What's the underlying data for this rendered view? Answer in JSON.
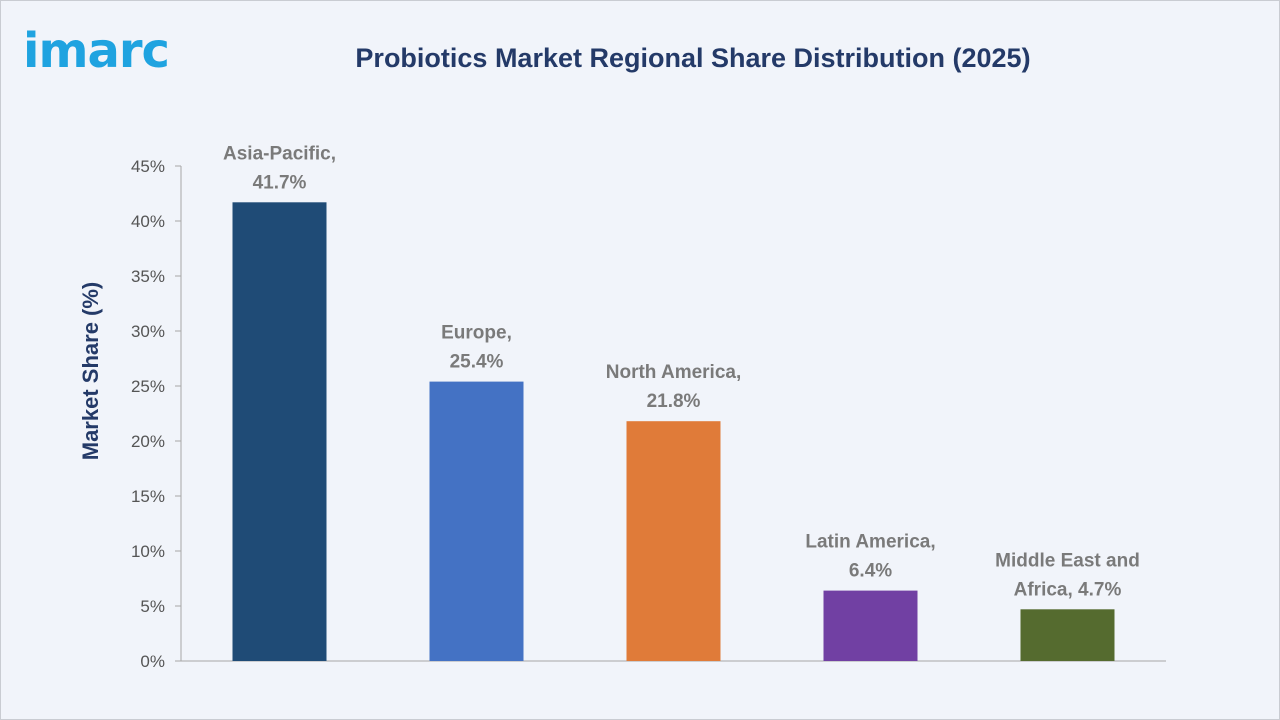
{
  "brand": {
    "logo_text": "imarc",
    "logo_color": "#1fa3e0"
  },
  "chart_data": {
    "type": "bar",
    "title": "Probiotics Market Regional Share Distribution (2025)",
    "ylabel": "Market Share (%)",
    "xlabel": "",
    "ylim": [
      0,
      45
    ],
    "yticks": [
      0,
      5,
      10,
      15,
      20,
      25,
      30,
      35,
      40,
      45
    ],
    "ytick_labels": [
      "0%",
      "5%",
      "10%",
      "15%",
      "20%",
      "25%",
      "30%",
      "35%",
      "40%",
      "45%"
    ],
    "grid": false,
    "categories": [
      "Asia-Pacific",
      "Europe",
      "North America",
      "Latin America",
      "Middle East and Africa"
    ],
    "values": [
      41.7,
      25.4,
      21.8,
      6.4,
      4.7
    ],
    "data_labels": [
      [
        "Asia-Pacific,",
        "41.7%"
      ],
      [
        "Europe,",
        "25.4%"
      ],
      [
        "North America,",
        "21.8%"
      ],
      [
        "Latin America,",
        "6.4%"
      ],
      [
        "Middle East and",
        "Africa, 4.7%"
      ]
    ],
    "colors": [
      "#1f4b76",
      "#4472c4",
      "#e07b39",
      "#7140a3",
      "#556b2f"
    ]
  }
}
